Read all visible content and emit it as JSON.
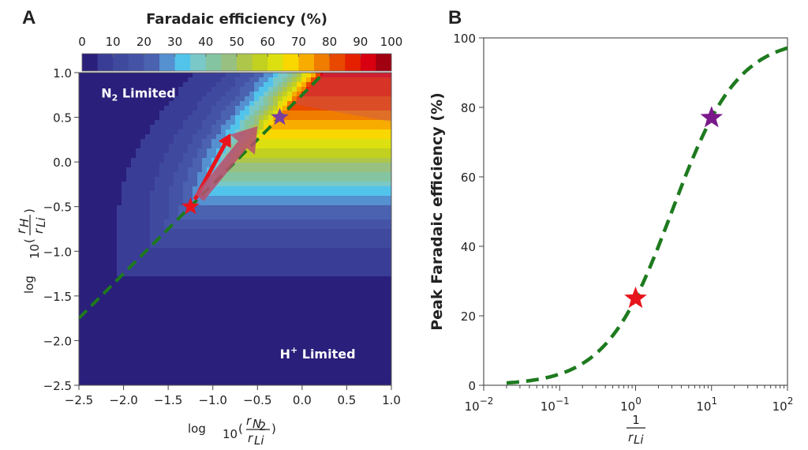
{
  "chart_data": [
    {
      "panel_label": "A",
      "type": "heatmap",
      "colorbar": {
        "title": "Faradaic efficiency (%)",
        "ticks": [
          "0",
          "10",
          "20",
          "30",
          "40",
          "50",
          "60",
          "70",
          "80",
          "90",
          "100"
        ],
        "range": [
          0,
          100
        ],
        "levels": 20,
        "colors": [
          "#2a1f7a",
          "#3a3d96",
          "#3f4a9e",
          "#4553a6",
          "#4a62b0",
          "#5590d0",
          "#52c4ec",
          "#7ac8c8",
          "#85c4a0",
          "#98c080",
          "#aec64a",
          "#c2d020",
          "#dde010",
          "#f8d800",
          "#f8ac00",
          "#f07c00",
          "#e84800",
          "#e42000",
          "#d80010",
          "#a00010"
        ]
      },
      "xlabel": {
        "prefix": "log",
        "sub": "10",
        "num": "r",
        "num_sub": "N",
        "num_sub2": "2",
        "den": "r",
        "den_sub": "Li"
      },
      "ylabel": {
        "prefix": "log",
        "sub": "10",
        "num": "r",
        "num_sub": "H",
        "den": "r",
        "den_sub": "Li"
      },
      "xlim": [
        -2.5,
        1.0
      ],
      "ylim": [
        -2.5,
        1.0
      ],
      "xticks": [
        "−2.5",
        "−2.0",
        "−1.5",
        "−1.0",
        "−0.5",
        "0.0",
        "0.5",
        "1.0"
      ],
      "yticks": [
        "1.0",
        "0.5",
        "0.0",
        "−0.5",
        "−1.0",
        "−1.5",
        "−2.0",
        "−2.5"
      ],
      "annotations": [
        {
          "text": "N",
          "sub": "2",
          "rest": " Limited",
          "x": -2.25,
          "y": 0.72
        },
        {
          "text": "H",
          "sup": "+",
          "rest": " Limited",
          "x": -0.25,
          "y": -2.2
        }
      ],
      "line": {
        "style": "dashed",
        "color": "#1e7a1e",
        "slope": 1,
        "intercept": 0.75
      },
      "stars": [
        {
          "x": -1.25,
          "y": -0.5,
          "color": "#e8141c"
        },
        {
          "x": -0.25,
          "y": 0.5,
          "color": "#7a3fa0"
        }
      ],
      "arrows": [
        {
          "from": [
            -1.2,
            -0.42
          ],
          "to": [
            -0.8,
            0.32
          ],
          "color": "#e8141c"
        },
        {
          "from": [
            -1.15,
            -0.4
          ],
          "to": [
            -0.5,
            0.4
          ],
          "color": "#b85070"
        }
      ]
    },
    {
      "panel_label": "B",
      "type": "line",
      "xlabel": {
        "num": "1",
        "den": "r",
        "den_sub": "Li"
      },
      "ylabel": "Peak Faradaic efficiency (%)",
      "xscale": "log",
      "xlim": [
        0.01,
        100
      ],
      "ylim": [
        0,
        100
      ],
      "xticks": [
        {
          "base": "10",
          "exp": "−2"
        },
        {
          "base": "10",
          "exp": "−1"
        },
        {
          "base": "10",
          "exp": "0"
        },
        {
          "base": "10",
          "exp": "1"
        },
        {
          "base": "10",
          "exp": "2"
        }
      ],
      "yticks": [
        "0",
        "20",
        "40",
        "60",
        "80",
        "100"
      ],
      "series": [
        {
          "style": "dashed",
          "color": "#1e7a1e",
          "x": [
            0.02,
            0.05,
            0.1,
            0.2,
            0.5,
            1,
            2,
            5,
            10,
            20,
            50,
            100
          ],
          "y": [
            0.7,
            1.6,
            3.2,
            6.3,
            14.3,
            25,
            40,
            62.5,
            76.9,
            87,
            94.3,
            97.1
          ]
        }
      ],
      "stars": [
        {
          "x": 1,
          "y": 25,
          "color": "#e8141c"
        },
        {
          "x": 10,
          "y": 77,
          "color": "#7a1a8a"
        }
      ]
    }
  ]
}
